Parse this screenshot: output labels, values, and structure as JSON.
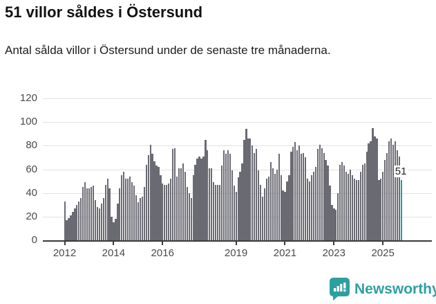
{
  "header": {
    "title": "51 villor såldes i Östersund",
    "subtitle": "Antal sålda villor i Östersund under de senaste tre månaderna."
  },
  "chart_data": {
    "type": "bar",
    "title": "51 villor såldes i Östersund",
    "xlabel": "",
    "ylabel": "",
    "ylim": [
      0,
      120
    ],
    "yticks": [
      0,
      20,
      40,
      60,
      80,
      100,
      120
    ],
    "grid": true,
    "start_month": "2012-01",
    "end_month": "2025-10",
    "x_tick_labels": [
      "2012",
      "2014",
      "2016",
      "2019",
      "2021",
      "2023",
      "2025"
    ],
    "x_tick_month_index": [
      0,
      24,
      48,
      84,
      108,
      132,
      156
    ],
    "values": [
      33,
      17,
      19,
      21,
      24,
      27,
      30,
      33,
      36,
      45,
      49,
      44,
      44,
      45,
      46,
      34,
      28,
      27,
      31,
      36,
      47,
      52,
      44,
      20,
      15,
      18,
      31,
      44,
      55,
      58,
      52,
      52,
      54,
      49,
      46,
      38,
      32,
      36,
      37,
      45,
      64,
      72,
      81,
      73,
      67,
      63,
      62,
      55,
      48,
      47,
      47,
      48,
      52,
      77,
      78,
      54,
      61,
      61,
      65,
      58,
      45,
      40,
      36,
      55,
      64,
      69,
      71,
      69,
      71,
      85,
      76,
      61,
      61,
      49,
      47,
      47,
      47,
      63,
      76,
      73,
      76,
      73,
      59,
      46,
      41,
      53,
      58,
      65,
      85,
      94,
      86,
      86,
      80,
      74,
      77,
      59,
      47,
      37,
      44,
      52,
      54,
      66,
      61,
      56,
      60,
      73,
      55,
      42,
      41,
      50,
      55,
      75,
      79,
      83,
      76,
      80,
      73,
      74,
      70,
      52,
      50,
      55,
      58,
      62,
      77,
      81,
      78,
      74,
      68,
      63,
      46,
      30,
      27,
      26,
      40,
      64,
      66,
      63,
      58,
      56,
      60,
      55,
      52,
      51,
      51,
      58,
      64,
      65,
      75,
      82,
      84,
      95,
      88,
      86,
      51,
      52,
      58,
      68,
      74,
      84,
      86,
      81,
      84,
      76,
      71,
      51
    ],
    "highlight_last_bar": true,
    "last_value_label": "51",
    "bar_color": "#6a6a73",
    "highlight_color": "#17a2a2",
    "legend_position": "none"
  },
  "footer": {
    "brand": "Newsworthy",
    "brand_color": "#2e9f9f"
  }
}
